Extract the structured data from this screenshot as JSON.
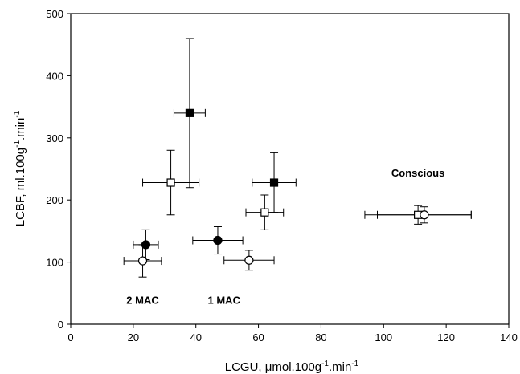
{
  "chart_data": {
    "type": "scatter",
    "title": "",
    "xlabel": {
      "main": "LCGU, μmol.100g",
      "sup1": "-1",
      "mid": ".min",
      "sup2": "-1"
    },
    "ylabel": {
      "main": "LCBF, ml.100g",
      "sup1": "-1",
      "mid": ".min",
      "sup2": "-1"
    },
    "xlim": [
      0,
      140
    ],
    "ylim": [
      0,
      500
    ],
    "xticks": [
      0,
      20,
      40,
      60,
      80,
      100,
      120,
      140
    ],
    "yticks": [
      0,
      100,
      200,
      300,
      400,
      500
    ],
    "grid": false,
    "legend": "none",
    "annotations": [
      {
        "text": "2 MAC",
        "x": 23,
        "y": 33
      },
      {
        "text": "1 MAC",
        "x": 49,
        "y": 33
      },
      {
        "text": "Conscious",
        "x": 111,
        "y": 238
      }
    ],
    "series": [
      {
        "marker": "square-filled",
        "points": [
          {
            "x": 38,
            "y": 340,
            "xerr": 5,
            "yerr": [
              120,
              120
            ]
          },
          {
            "x": 65,
            "y": 228,
            "xerr": 7,
            "yerr": [
              48,
              48
            ]
          }
        ]
      },
      {
        "marker": "square-open",
        "points": [
          {
            "x": 32,
            "y": 228,
            "xerr": 9,
            "yerr": [
              52,
              52
            ]
          },
          {
            "x": 62,
            "y": 180,
            "xerr": 6,
            "yerr": [
              28,
              28
            ]
          },
          {
            "x": 111,
            "y": 176,
            "xerr": 17,
            "yerr": [
              15,
              15
            ]
          }
        ]
      },
      {
        "marker": "circle-filled",
        "points": [
          {
            "x": 24,
            "y": 128,
            "xerr": 4,
            "yerr": [
              24,
              24
            ]
          },
          {
            "x": 47,
            "y": 135,
            "xerr": 8,
            "yerr": [
              22,
              22
            ]
          }
        ]
      },
      {
        "marker": "circle-open",
        "points": [
          {
            "x": 23,
            "y": 102,
            "xerr": 6,
            "yerr": [
              26,
              26
            ]
          },
          {
            "x": 57,
            "y": 103,
            "xerr": 8,
            "yerr": [
              16,
              16
            ]
          },
          {
            "x": 113,
            "y": 176,
            "xerr": 15,
            "yerr": [
              13,
              13
            ]
          }
        ]
      }
    ]
  }
}
